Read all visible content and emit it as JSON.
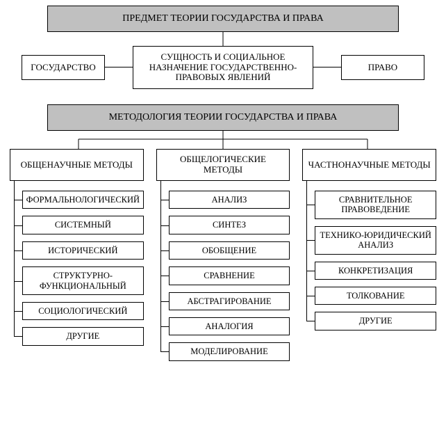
{
  "colors": {
    "header_bg": "#c0c0c0",
    "border": "#000000",
    "page_bg": "#ffffff",
    "text": "#000000"
  },
  "section1": {
    "header": "ПРЕДМЕТ ТЕОРИИ ГОСУДАРСТВА И ПРАВА",
    "left": "ГОСУДАРСТВО",
    "center": "СУЩНОСТЬ И СОЦИАЛЬНОЕ НАЗНАЧЕНИЕ ГОСУДАРСТВЕННО-ПРАВОВЫХ ЯВЛЕНИЙ",
    "right": "ПРАВО"
  },
  "section2": {
    "header": "МЕТОДОЛОГИЯ ТЕОРИИ ГОСУДАРСТВА И ПРАВА",
    "columns": [
      {
        "title": "ОБЩЕНАУЧНЫЕ МЕТОДЫ",
        "items": [
          "ФОРМАЛЬНОЛОГИЧЕСКИЙ",
          "СИСТЕМНЫЙ",
          "ИСТОРИЧЕСКИЙ",
          "СТРУКТУРНО-ФУНКЦИОНАЛЬНЫЙ",
          "СОЦИОЛОГИЧЕСКИЙ",
          "ДРУГИЕ"
        ]
      },
      {
        "title": "ОБЩЕЛОГИЧЕСКИЕ МЕТОДЫ",
        "items": [
          "АНАЛИЗ",
          "СИНТЕЗ",
          "ОБОБЩЕНИЕ",
          "СРАВНЕНИЕ",
          "АБСТРАГИРОВАНИЕ",
          "АНАЛОГИЯ",
          "МОДЕЛИРОВАНИЕ"
        ]
      },
      {
        "title": "ЧАСТНОНАУЧНЫЕ МЕТОДЫ",
        "items": [
          "СРАВНИТЕЛЬНОЕ ПРАВОВЕДЕНИЕ",
          "ТЕХНИКО-ЮРИДИЧЕСКИЙ АНАЛИЗ",
          "КОНКРЕТИЗАЦИЯ",
          "ТОЛКОВАНИЕ",
          "ДРУГИЕ"
        ]
      }
    ]
  }
}
